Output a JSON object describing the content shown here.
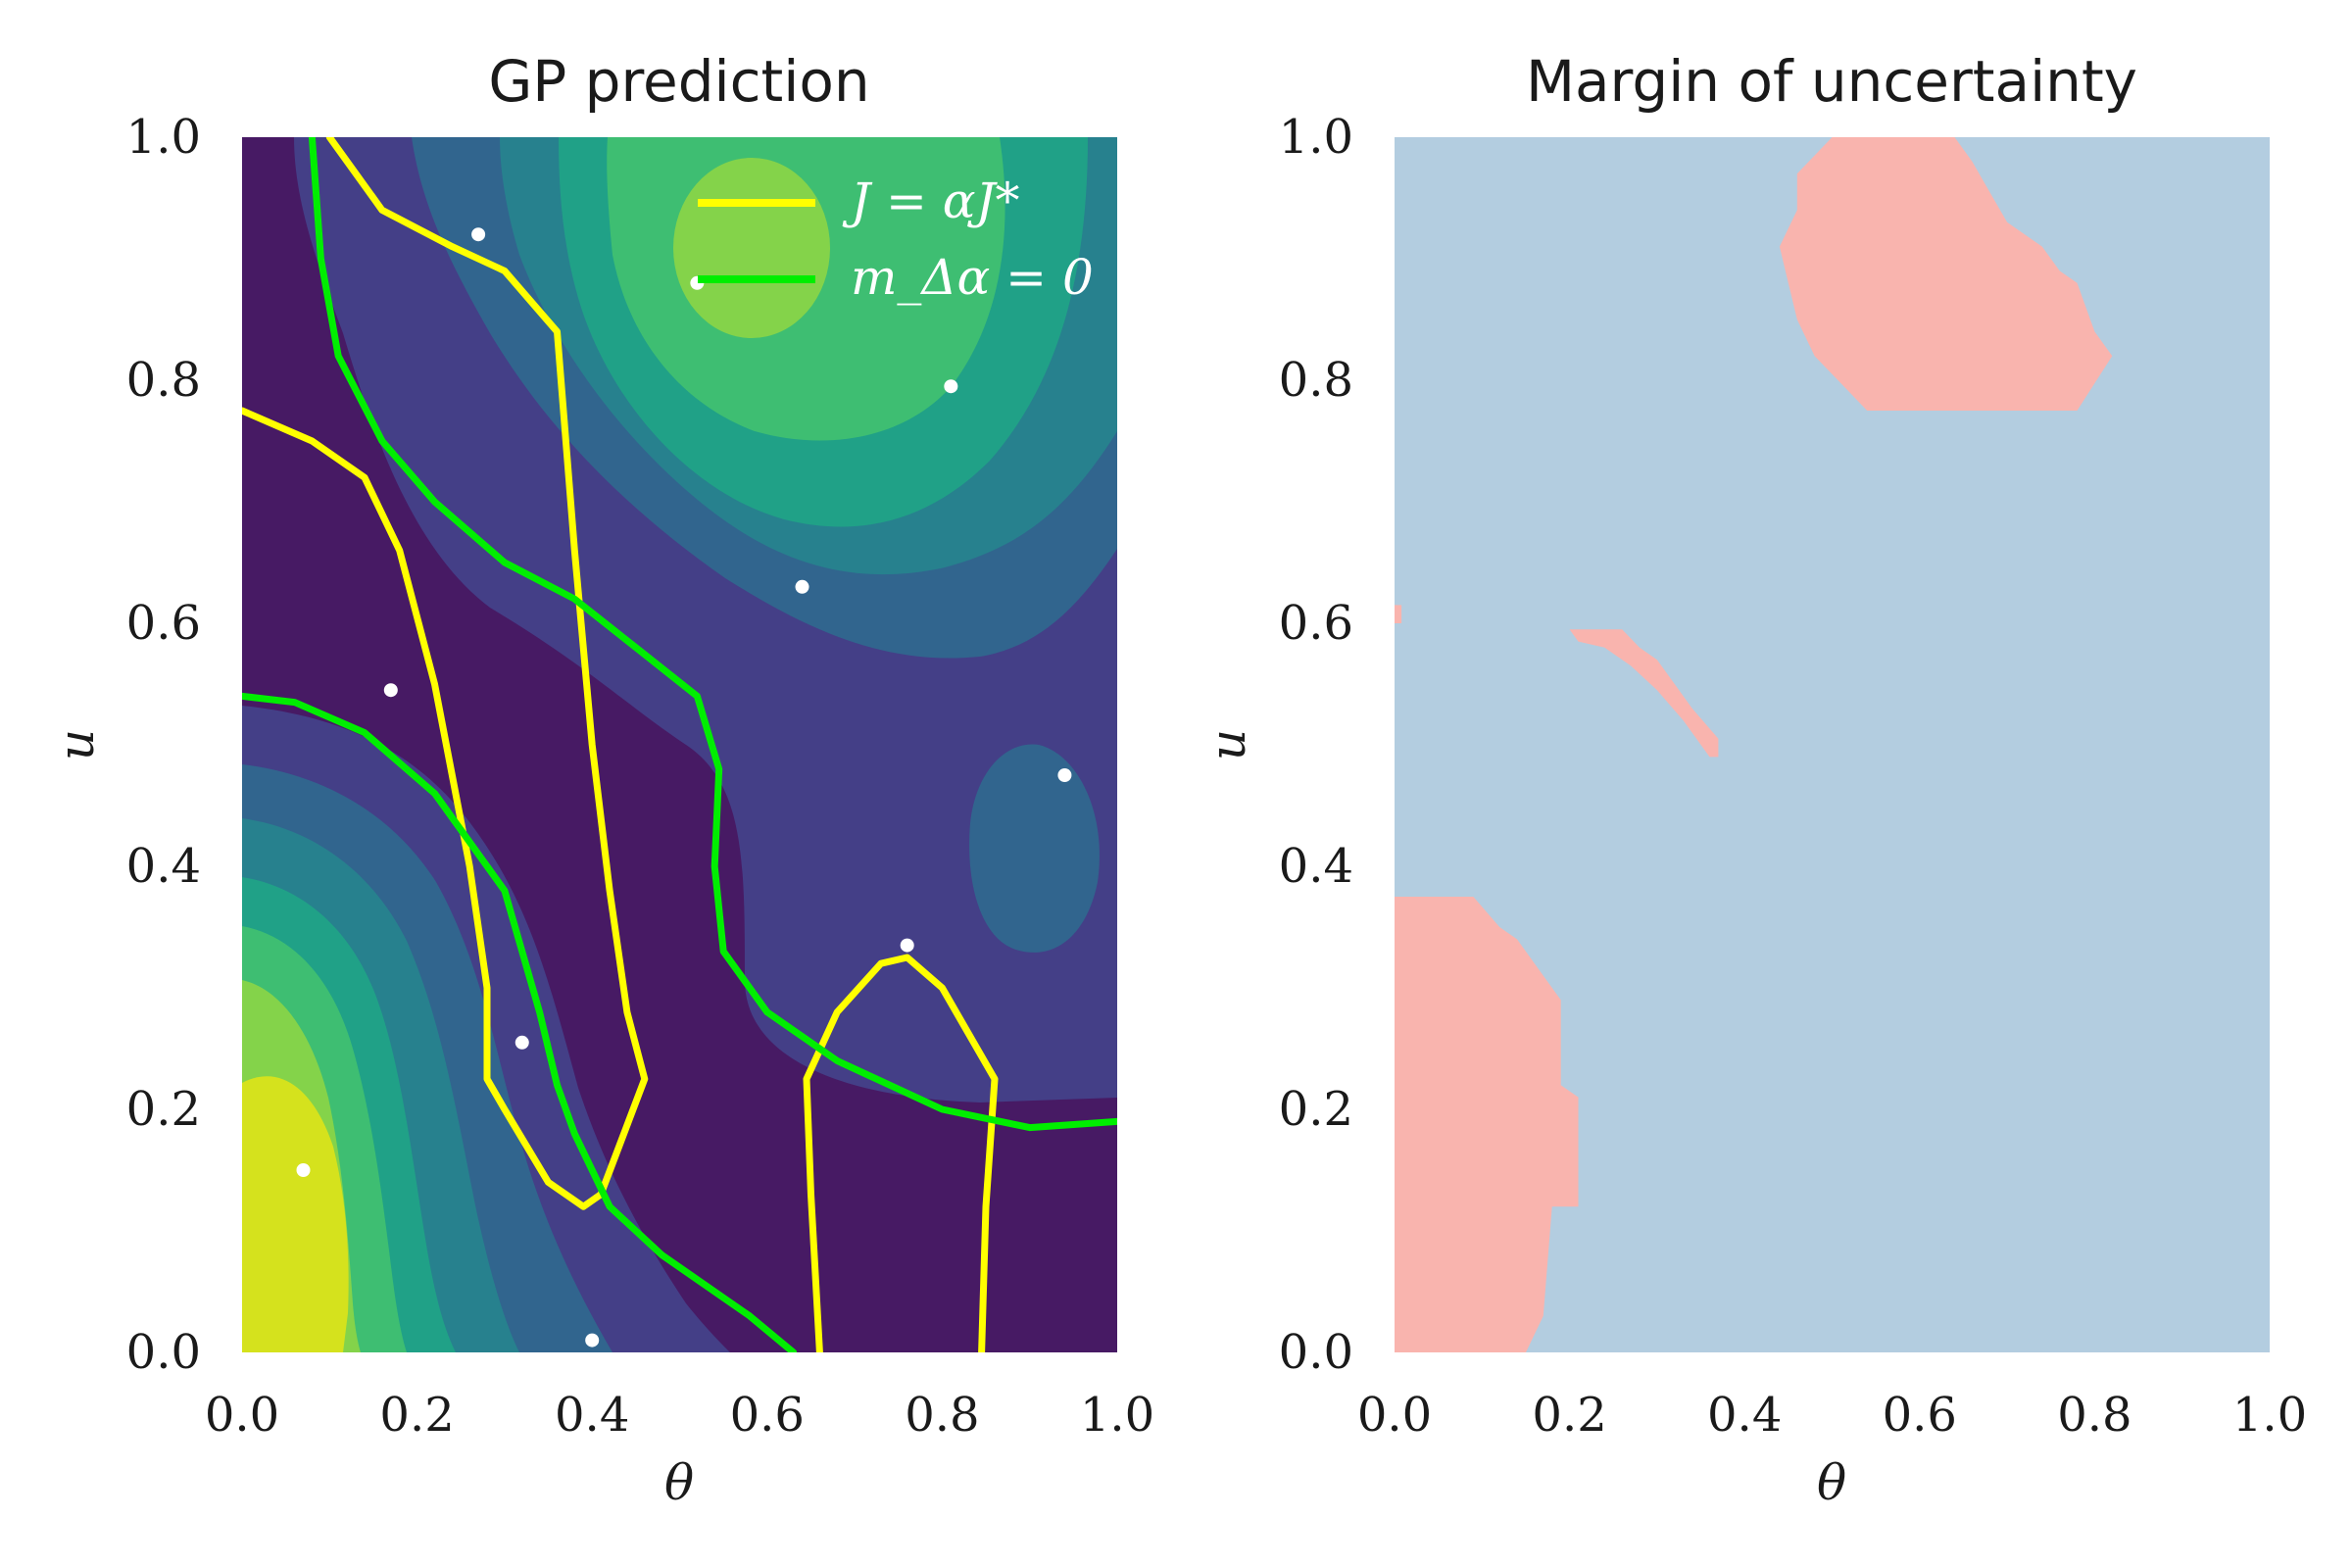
{
  "chart_data": [
    {
      "type": "heatmap",
      "title": "GP prediction",
      "xlabel": "θ",
      "ylabel": "u",
      "xlim": [
        0.0,
        1.0
      ],
      "ylim": [
        0.0,
        1.0
      ],
      "x_ticks": [
        "0.0",
        "0.2",
        "0.4",
        "0.6",
        "0.8",
        "1.0"
      ],
      "y_ticks": [
        "0.0",
        "0.2",
        "0.4",
        "0.6",
        "0.8",
        "1.0"
      ],
      "grid": false,
      "legend_placement": "top-right",
      "colormap": "viridis",
      "colors": {
        "background": "#471a64",
        "band_1": "#443f87",
        "band_2": "#31658e",
        "band_3": "#27818e",
        "band_4": "#20a187",
        "band_5": "#3ebe72",
        "band_6": "#84d34a",
        "band_7": "#d5e21d",
        "j_contour": "#ffff00",
        "margin_contour": "#00ee00",
        "sample_points": "#ffffff"
      },
      "legend": [
        {
          "label": "J = αJ*",
          "color": "#ffff00"
        },
        {
          "label": "m_Δα = 0",
          "color": "#00ee00"
        }
      ],
      "series": [
        {
          "name": "J = αJ*",
          "segments": [
            [
              [
                0.1,
                1.0
              ],
              [
                0.16,
                0.94
              ],
              [
                0.24,
                0.91
              ],
              [
                0.3,
                0.89
              ],
              [
                0.36,
                0.84
              ],
              [
                0.38,
                0.66
              ],
              [
                0.4,
                0.5
              ],
              [
                0.42,
                0.38
              ],
              [
                0.44,
                0.28
              ],
              [
                0.46,
                0.225
              ],
              [
                0.41,
                0.13
              ],
              [
                0.39,
                0.12
              ],
              [
                0.35,
                0.14
              ],
              [
                0.3,
                0.2
              ],
              [
                0.28,
                0.225
              ],
              [
                0.28,
                0.3
              ],
              [
                0.26,
                0.4
              ],
              [
                0.22,
                0.55
              ],
              [
                0.18,
                0.66
              ],
              [
                0.14,
                0.72
              ],
              [
                0.08,
                0.75
              ],
              [
                0.0,
                0.775
              ]
            ],
            [
              [
                0.66,
                0.0
              ],
              [
                0.65,
                0.13
              ],
              [
                0.645,
                0.225
              ],
              [
                0.68,
                0.28
              ],
              [
                0.73,
                0.32
              ],
              [
                0.76,
                0.325
              ],
              [
                0.8,
                0.3
              ],
              [
                0.86,
                0.225
              ],
              [
                0.85,
                0.12
              ],
              [
                0.845,
                0.0
              ]
            ]
          ]
        },
        {
          "name": "m_Δα = 0",
          "segments": [
            [
              [
                0.08,
                1.0
              ],
              [
                0.09,
                0.9
              ],
              [
                0.11,
                0.82
              ],
              [
                0.16,
                0.75
              ],
              [
                0.22,
                0.7
              ],
              [
                0.3,
                0.65
              ],
              [
                0.38,
                0.62
              ],
              [
                0.45,
                0.58
              ],
              [
                0.52,
                0.54
              ],
              [
                0.545,
                0.48
              ],
              [
                0.54,
                0.4
              ],
              [
                0.55,
                0.33
              ],
              [
                0.6,
                0.28
              ],
              [
                0.68,
                0.24
              ],
              [
                0.8,
                0.2
              ],
              [
                0.9,
                0.185
              ],
              [
                1.0,
                0.19
              ]
            ],
            [
              [
                0.0,
                0.54
              ],
              [
                0.06,
                0.535
              ],
              [
                0.14,
                0.51
              ],
              [
                0.22,
                0.46
              ],
              [
                0.3,
                0.38
              ],
              [
                0.34,
                0.28
              ],
              [
                0.36,
                0.22
              ],
              [
                0.38,
                0.18
              ],
              [
                0.42,
                0.12
              ],
              [
                0.48,
                0.08
              ],
              [
                0.58,
                0.03
              ],
              [
                0.63,
                0.0
              ]
            ]
          ]
        }
      ],
      "points": [
        [
          0.27,
          0.92
        ],
        [
          0.52,
          0.88
        ],
        [
          0.81,
          0.795
        ],
        [
          0.64,
          0.63
        ],
        [
          0.17,
          0.545
        ],
        [
          0.94,
          0.475
        ],
        [
          0.76,
          0.335
        ],
        [
          0.32,
          0.255
        ],
        [
          0.07,
          0.15
        ],
        [
          0.4,
          0.01
        ]
      ]
    },
    {
      "type": "heatmap",
      "title": "Margin of uncertainty",
      "xlabel": "θ",
      "ylabel": "u",
      "xlim": [
        0.0,
        1.0
      ],
      "ylim": [
        0.0,
        1.0
      ],
      "x_ticks": [
        "0.0",
        "0.2",
        "0.4",
        "0.6",
        "0.8",
        "1.0"
      ],
      "y_ticks": [
        "0.0",
        "0.2",
        "0.4",
        "0.6",
        "0.8",
        "1.0"
      ],
      "grid": false,
      "colors": {
        "background": "#b3cde0",
        "uncertain": "#f9b4ae"
      },
      "regions": [
        [
          [
            0.5,
            1.0
          ],
          [
            0.64,
            1.0
          ],
          [
            0.66,
            0.98
          ],
          [
            0.7,
            0.93
          ],
          [
            0.74,
            0.91
          ],
          [
            0.76,
            0.89
          ],
          [
            0.78,
            0.88
          ],
          [
            0.8,
            0.84
          ],
          [
            0.82,
            0.82
          ],
          [
            0.78,
            0.775
          ],
          [
            0.54,
            0.775
          ],
          [
            0.52,
            0.79
          ],
          [
            0.48,
            0.82
          ],
          [
            0.46,
            0.85
          ],
          [
            0.45,
            0.88
          ],
          [
            0.44,
            0.91
          ],
          [
            0.46,
            0.94
          ],
          [
            0.46,
            0.97
          ]
        ],
        [
          [
            0.2,
            0.595
          ],
          [
            0.26,
            0.595
          ],
          [
            0.28,
            0.58
          ],
          [
            0.3,
            0.57
          ],
          [
            0.32,
            0.55
          ],
          [
            0.34,
            0.53
          ],
          [
            0.37,
            0.505
          ],
          [
            0.37,
            0.49
          ],
          [
            0.36,
            0.49
          ],
          [
            0.33,
            0.52
          ],
          [
            0.3,
            0.545
          ],
          [
            0.27,
            0.565
          ],
          [
            0.24,
            0.58
          ],
          [
            0.21,
            0.585
          ]
        ],
        [
          [
            0.0,
            0.375
          ],
          [
            0.09,
            0.375
          ],
          [
            0.12,
            0.35
          ],
          [
            0.14,
            0.34
          ],
          [
            0.17,
            0.31
          ],
          [
            0.19,
            0.29
          ],
          [
            0.19,
            0.22
          ],
          [
            0.21,
            0.21
          ],
          [
            0.21,
            0.12
          ],
          [
            0.18,
            0.12
          ],
          [
            0.17,
            0.03
          ],
          [
            0.15,
            0.0
          ],
          [
            0.0,
            0.0
          ]
        ],
        [
          [
            0.0,
            0.615
          ],
          [
            0.008,
            0.615
          ],
          [
            0.008,
            0.6
          ],
          [
            0.0,
            0.6
          ]
        ]
      ]
    }
  ]
}
